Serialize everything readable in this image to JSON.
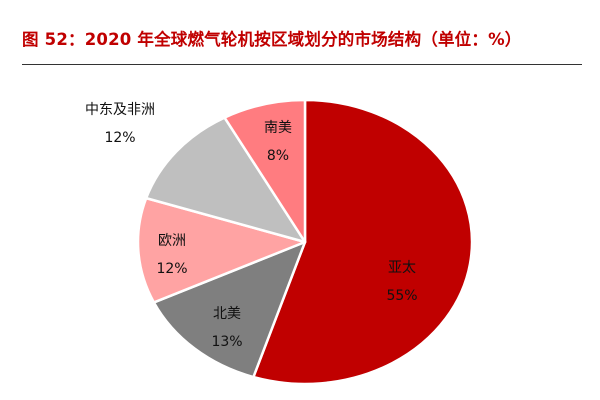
{
  "title": "图 52：2020 年全球燃气轮机按区域划分的市场结构（单位：%）",
  "chart_data": {
    "type": "pie",
    "title": "图 52：2020 年全球燃气轮机按区域划分的市场结构（单位：%）",
    "unit": "%",
    "start_angle": "12 o'clock",
    "direction": "clockwise",
    "categories": [
      "亚太",
      "北美",
      "欧洲",
      "中东及非洲",
      "南美"
    ],
    "values": [
      55,
      13,
      12,
      12,
      8
    ],
    "colors": [
      "#c00000",
      "#7f7f7f",
      "#ffa3a3",
      "#bfbfbf",
      "#ff7c80"
    ],
    "labels": [
      {
        "name": "亚太",
        "pct": "55%"
      },
      {
        "name": "北美",
        "pct": "13%"
      },
      {
        "name": "欧洲",
        "pct": "12%"
      },
      {
        "name": "中东及非洲",
        "pct": "12%"
      },
      {
        "name": "南美",
        "pct": "8%"
      }
    ],
    "legend": "none (inline data labels)"
  }
}
